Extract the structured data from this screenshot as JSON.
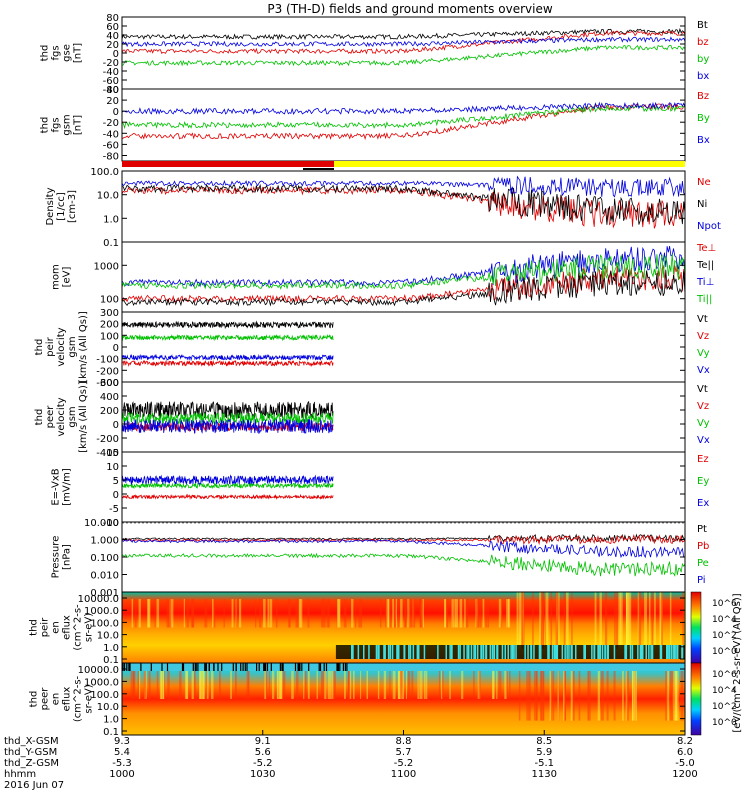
{
  "title": "P3 (TH-D) fields and ground moments overview",
  "chart_data": {
    "type": "line",
    "x_ticks": [
      {
        "hhmm": "1000",
        "x_gsm": "9.3",
        "y_gsm": "5.4",
        "z_gsm": "-5.3"
      },
      {
        "hhmm": "1030",
        "x_gsm": "9.1",
        "y_gsm": "5.6",
        "z_gsm": "-5.2"
      },
      {
        "hhmm": "1100",
        "x_gsm": "8.8",
        "y_gsm": "5.7",
        "z_gsm": "-5.2"
      },
      {
        "hhmm": "1130",
        "x_gsm": "8.5",
        "y_gsm": "5.9",
        "z_gsm": "-5.1"
      },
      {
        "hhmm": "1200",
        "x_gsm": "8.2",
        "y_gsm": "6.0",
        "z_gsm": "-5.0"
      }
    ],
    "x_row_labels": [
      "thd_X-GSM",
      "thd_Y-GSM",
      "thd_Z-GSM",
      "hhmm"
    ],
    "date": "2016 Jun 07",
    "panels": [
      {
        "id": "fgs_gse",
        "ylabel": [
          "thd",
          "fgs",
          "gse",
          "[nT]"
        ],
        "ticks": [
          "80",
          "60",
          "40",
          "20",
          "0",
          "-20",
          "-40",
          "-60",
          "-80"
        ],
        "ylim": [
          -80,
          80
        ],
        "scale": "linear",
        "series": [
          {
            "name": "Bt",
            "color": "#000000",
            "level": 36,
            "late": 48,
            "noise": 5
          },
          {
            "name": "bz",
            "color": "#e00000",
            "level": 4,
            "late": 44,
            "noise": 5
          },
          {
            "name": "by",
            "color": "#00c000",
            "level": -22,
            "late": 12,
            "noise": 5
          },
          {
            "name": "bx",
            "color": "#0000e0",
            "level": 20,
            "late": 30,
            "noise": 5
          }
        ]
      },
      {
        "id": "fgs_gsm",
        "ylabel": [
          "thd",
          "fgs",
          "gsm",
          "[nT]"
        ],
        "ticks": [
          "40",
          "20",
          "0",
          "-20",
          "-40",
          "-60",
          "-80"
        ],
        "ylim": [
          -90,
          40
        ],
        "scale": "linear",
        "series": [
          {
            "name": "Bz",
            "color": "#e00000",
            "level": -45,
            "late": 8,
            "noise": 5
          },
          {
            "name": "By",
            "color": "#00c000",
            "level": -25,
            "late": 5,
            "noise": 5
          },
          {
            "name": "Bx",
            "color": "#0000e0",
            "level": 0,
            "late": 10,
            "noise": 5
          }
        ]
      },
      {
        "id": "density",
        "ylabel": [
          "Density",
          "[1/cc]",
          "[cm-3]"
        ],
        "ticks": [
          "100.0",
          "10.0",
          "1.0",
          "0.1"
        ],
        "ylim": [
          0.1,
          100
        ],
        "scale": "log",
        "series": [
          {
            "name": "Ne",
            "color": "#e00000",
            "level": 15,
            "late": 1.5,
            "noise": 0.15
          },
          {
            "name": "Ni",
            "color": "#000000",
            "level": 18,
            "late": 2,
            "noise": 0.15
          },
          {
            "name": "Npot",
            "color": "#0000e0",
            "level": 30,
            "late": 20,
            "noise": 0.1
          }
        ]
      },
      {
        "id": "temp",
        "ylabel": [
          "mom",
          "[eV]"
        ],
        "ticks": [
          "1000",
          "100"
        ],
        "ylim": [
          40,
          5000
        ],
        "scale": "log",
        "series": [
          {
            "name": "Te⊥",
            "color": "#e00000",
            "level": 100,
            "late": 400,
            "noise": 0.1
          },
          {
            "name": "Te||",
            "color": "#000000",
            "level": 80,
            "late": 300,
            "noise": 0.1
          },
          {
            "name": "Ti⊥",
            "color": "#0000e0",
            "level": 300,
            "late": 1500,
            "noise": 0.1
          },
          {
            "name": "Ti||",
            "color": "#00c000",
            "level": 250,
            "late": 900,
            "noise": 0.1
          }
        ]
      },
      {
        "id": "peir_vel",
        "ylabel": [
          "thd",
          "peir",
          "velocity",
          "gsm",
          "[km/s (All Qs)]"
        ],
        "ticks": [
          "300",
          "200",
          "100",
          "0",
          "-100",
          "-200",
          "-300"
        ],
        "ylim": [
          -300,
          300
        ],
        "scale": "linear",
        "series": [
          {
            "name": "Vt",
            "color": "#000000",
            "level": 190,
            "noise": 25
          },
          {
            "name": "Vz",
            "color": "#e00000",
            "level": -140,
            "noise": 20
          },
          {
            "name": "Vy",
            "color": "#00c000",
            "level": 80,
            "noise": 20
          },
          {
            "name": "Vx",
            "color": "#0000e0",
            "level": -90,
            "noise": 20
          }
        ]
      },
      {
        "id": "peer_vel",
        "ylabel": [
          "thd",
          "peer",
          "velocity",
          "gsm",
          "[km/s (All Qs)]"
        ],
        "ticks": [
          "600",
          "400",
          "200",
          "0",
          "-200",
          "-400"
        ],
        "ylim": [
          -400,
          600
        ],
        "scale": "linear",
        "series": [
          {
            "name": "Vt",
            "color": "#000000",
            "level": 200,
            "noise": 120
          },
          {
            "name": "Vz",
            "color": "#e00000",
            "level": -40,
            "noise": 60
          },
          {
            "name": "Vy",
            "color": "#00c000",
            "level": 80,
            "noise": 80
          },
          {
            "name": "Vx",
            "color": "#0000e0",
            "level": -30,
            "noise": 100
          }
        ]
      },
      {
        "id": "efield",
        "ylabel": [
          "E=-VxB",
          "[mV/m]"
        ],
        "ticks": [
          "15",
          "10",
          "5",
          "0",
          "-5",
          "-10"
        ],
        "ylim": [
          -10,
          15
        ],
        "scale": "linear",
        "series": [
          {
            "name": "Ez",
            "color": "#e00000",
            "level": -1,
            "noise": 0.6
          },
          {
            "name": "Ey",
            "color": "#00c000",
            "level": 3,
            "noise": 0.8
          },
          {
            "name": "Ex",
            "color": "#0000e0",
            "level": 5,
            "noise": 1.5
          }
        ]
      },
      {
        "id": "pressure",
        "ylabel": [
          "Pressure",
          "[nPa]"
        ],
        "ticks": [
          "10.000",
          "1.000",
          "0.100",
          "0.010",
          "0.001"
        ],
        "ylim": [
          0.001,
          10
        ],
        "scale": "log",
        "series": [
          {
            "name": "Pt",
            "color": "#000000",
            "level": 1.1,
            "late": 1.2,
            "noise": 0.05
          },
          {
            "name": "Pb",
            "color": "#e00000",
            "level": 0.9,
            "late": 1.0,
            "noise": 0.06
          },
          {
            "name": "Pe",
            "color": "#00c000",
            "level": 0.12,
            "late": 0.02,
            "noise": 0.1
          },
          {
            "name": "Pi",
            "color": "#0000e0",
            "level": 0.8,
            "late": 0.2,
            "noise": 0.08
          }
        ]
      },
      {
        "id": "peir_spec",
        "type": "heatmap",
        "ylabel": [
          "thd",
          "peir",
          "en",
          "eflux",
          "(cm^2-s-",
          "sr-eV)"
        ],
        "ticks": [
          "10000.0",
          "1000.0",
          "100.0",
          "10.0",
          "1.0",
          "0.1"
        ],
        "scale": "log"
      },
      {
        "id": "peer_spec",
        "type": "heatmap",
        "ylabel": [
          "thd",
          "peer",
          "en",
          "eflux",
          "(cm^2-s-",
          "sr-eV)"
        ],
        "ticks": [
          "10000.0",
          "1000.0",
          "100.0",
          "10.0",
          "1.0",
          "0.1"
        ],
        "scale": "log"
      }
    ],
    "colorbar": {
      "label": "[eV/(cm^2-s-sr-eV) (All Qs)]",
      "ticks": [
        "10^6",
        "10^4",
        "10^2",
        "10^0",
        "10^6",
        "10^4",
        "10^2",
        "10^0"
      ]
    }
  }
}
